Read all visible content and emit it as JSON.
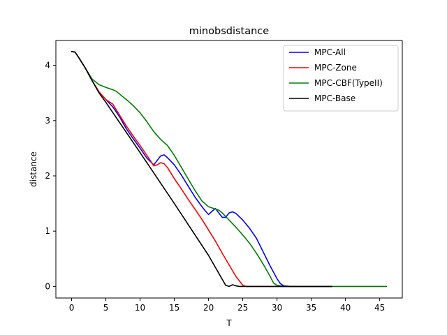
{
  "chart_data": {
    "type": "line",
    "title": "minobsdistance",
    "xlabel": "T",
    "ylabel": "distance",
    "xlim": [
      -2.3,
      48.3
    ],
    "ylim": [
      -0.21,
      4.45
    ],
    "xticks": [
      0,
      5,
      10,
      15,
      20,
      25,
      30,
      35,
      40,
      45
    ],
    "yticks": [
      0,
      1,
      2,
      3,
      4
    ],
    "grid": false,
    "legend_position": "top-right",
    "series": [
      {
        "name": "MPC-All",
        "color": "#0000ff",
        "x": [
          0,
          0.5,
          1,
          2,
          3,
          4,
          5,
          6,
          7,
          8,
          9,
          10,
          11,
          12,
          12.5,
          13,
          13.5,
          14,
          15,
          16,
          17,
          18,
          19,
          19.5,
          20,
          20.5,
          21,
          21.5,
          22,
          22.5,
          23,
          23.5,
          24,
          25,
          26,
          27,
          28,
          29,
          30,
          30.5,
          31,
          32,
          35,
          38
        ],
        "y": [
          4.25,
          4.24,
          4.15,
          3.95,
          3.72,
          3.52,
          3.38,
          3.25,
          3.07,
          2.85,
          2.67,
          2.5,
          2.32,
          2.2,
          2.28,
          2.36,
          2.38,
          2.33,
          2.2,
          2.02,
          1.82,
          1.62,
          1.45,
          1.37,
          1.3,
          1.36,
          1.41,
          1.33,
          1.25,
          1.25,
          1.33,
          1.35,
          1.32,
          1.2,
          1.05,
          0.87,
          0.62,
          0.37,
          0.14,
          0.05,
          0.01,
          0.0,
          0.0,
          0.0
        ]
      },
      {
        "name": "MPC-Zone",
        "color": "#ff0000",
        "x": [
          0,
          0.5,
          1,
          2,
          3,
          4,
          5,
          6,
          7,
          8,
          9,
          10,
          11,
          12,
          12.5,
          13,
          13.5,
          14,
          15,
          16,
          17,
          18,
          19,
          20,
          21,
          22,
          23,
          24,
          25,
          25.5,
          26,
          30,
          35,
          38
        ],
        "y": [
          4.25,
          4.24,
          4.15,
          3.95,
          3.72,
          3.52,
          3.38,
          3.3,
          3.1,
          2.9,
          2.72,
          2.55,
          2.37,
          2.18,
          2.2,
          2.24,
          2.22,
          2.15,
          1.95,
          1.77,
          1.58,
          1.4,
          1.22,
          1.02,
          0.82,
          0.6,
          0.39,
          0.18,
          0.02,
          0.0,
          0.0,
          0.0,
          0.0,
          0.0
        ]
      },
      {
        "name": "MPC-CBF(TypeII)",
        "color": "#008000",
        "x": [
          0,
          0.5,
          1,
          2,
          3,
          3.5,
          4,
          5,
          6,
          6.5,
          7,
          8,
          9,
          10,
          11,
          12,
          13,
          14,
          15,
          16,
          17,
          18,
          19,
          20,
          20.5,
          21,
          21.5,
          22,
          23,
          24,
          25,
          26,
          27,
          28,
          29,
          29.5,
          30,
          31,
          35,
          40,
          46
        ],
        "y": [
          4.25,
          4.24,
          4.15,
          3.95,
          3.75,
          3.7,
          3.65,
          3.6,
          3.56,
          3.53,
          3.48,
          3.38,
          3.27,
          3.14,
          2.98,
          2.8,
          2.66,
          2.55,
          2.37,
          2.16,
          1.95,
          1.74,
          1.55,
          1.44,
          1.42,
          1.4,
          1.38,
          1.33,
          1.2,
          1.07,
          0.93,
          0.78,
          0.6,
          0.4,
          0.18,
          0.06,
          0.02,
          0.0,
          0.0,
          0.0,
          0.0
        ]
      },
      {
        "name": "MPC-Base",
        "color": "#000000",
        "x": [
          0,
          0.5,
          1,
          2,
          3,
          4,
          5,
          10,
          15,
          20,
          22.5,
          23,
          23.5,
          24,
          24.5,
          25,
          30,
          35,
          38
        ],
        "y": [
          4.25,
          4.24,
          4.15,
          3.95,
          3.72,
          3.5,
          3.33,
          2.42,
          1.5,
          0.56,
          0.02,
          0.0,
          0.03,
          0.01,
          0.0,
          0.0,
          0.0,
          0.0,
          0.0
        ]
      }
    ]
  }
}
